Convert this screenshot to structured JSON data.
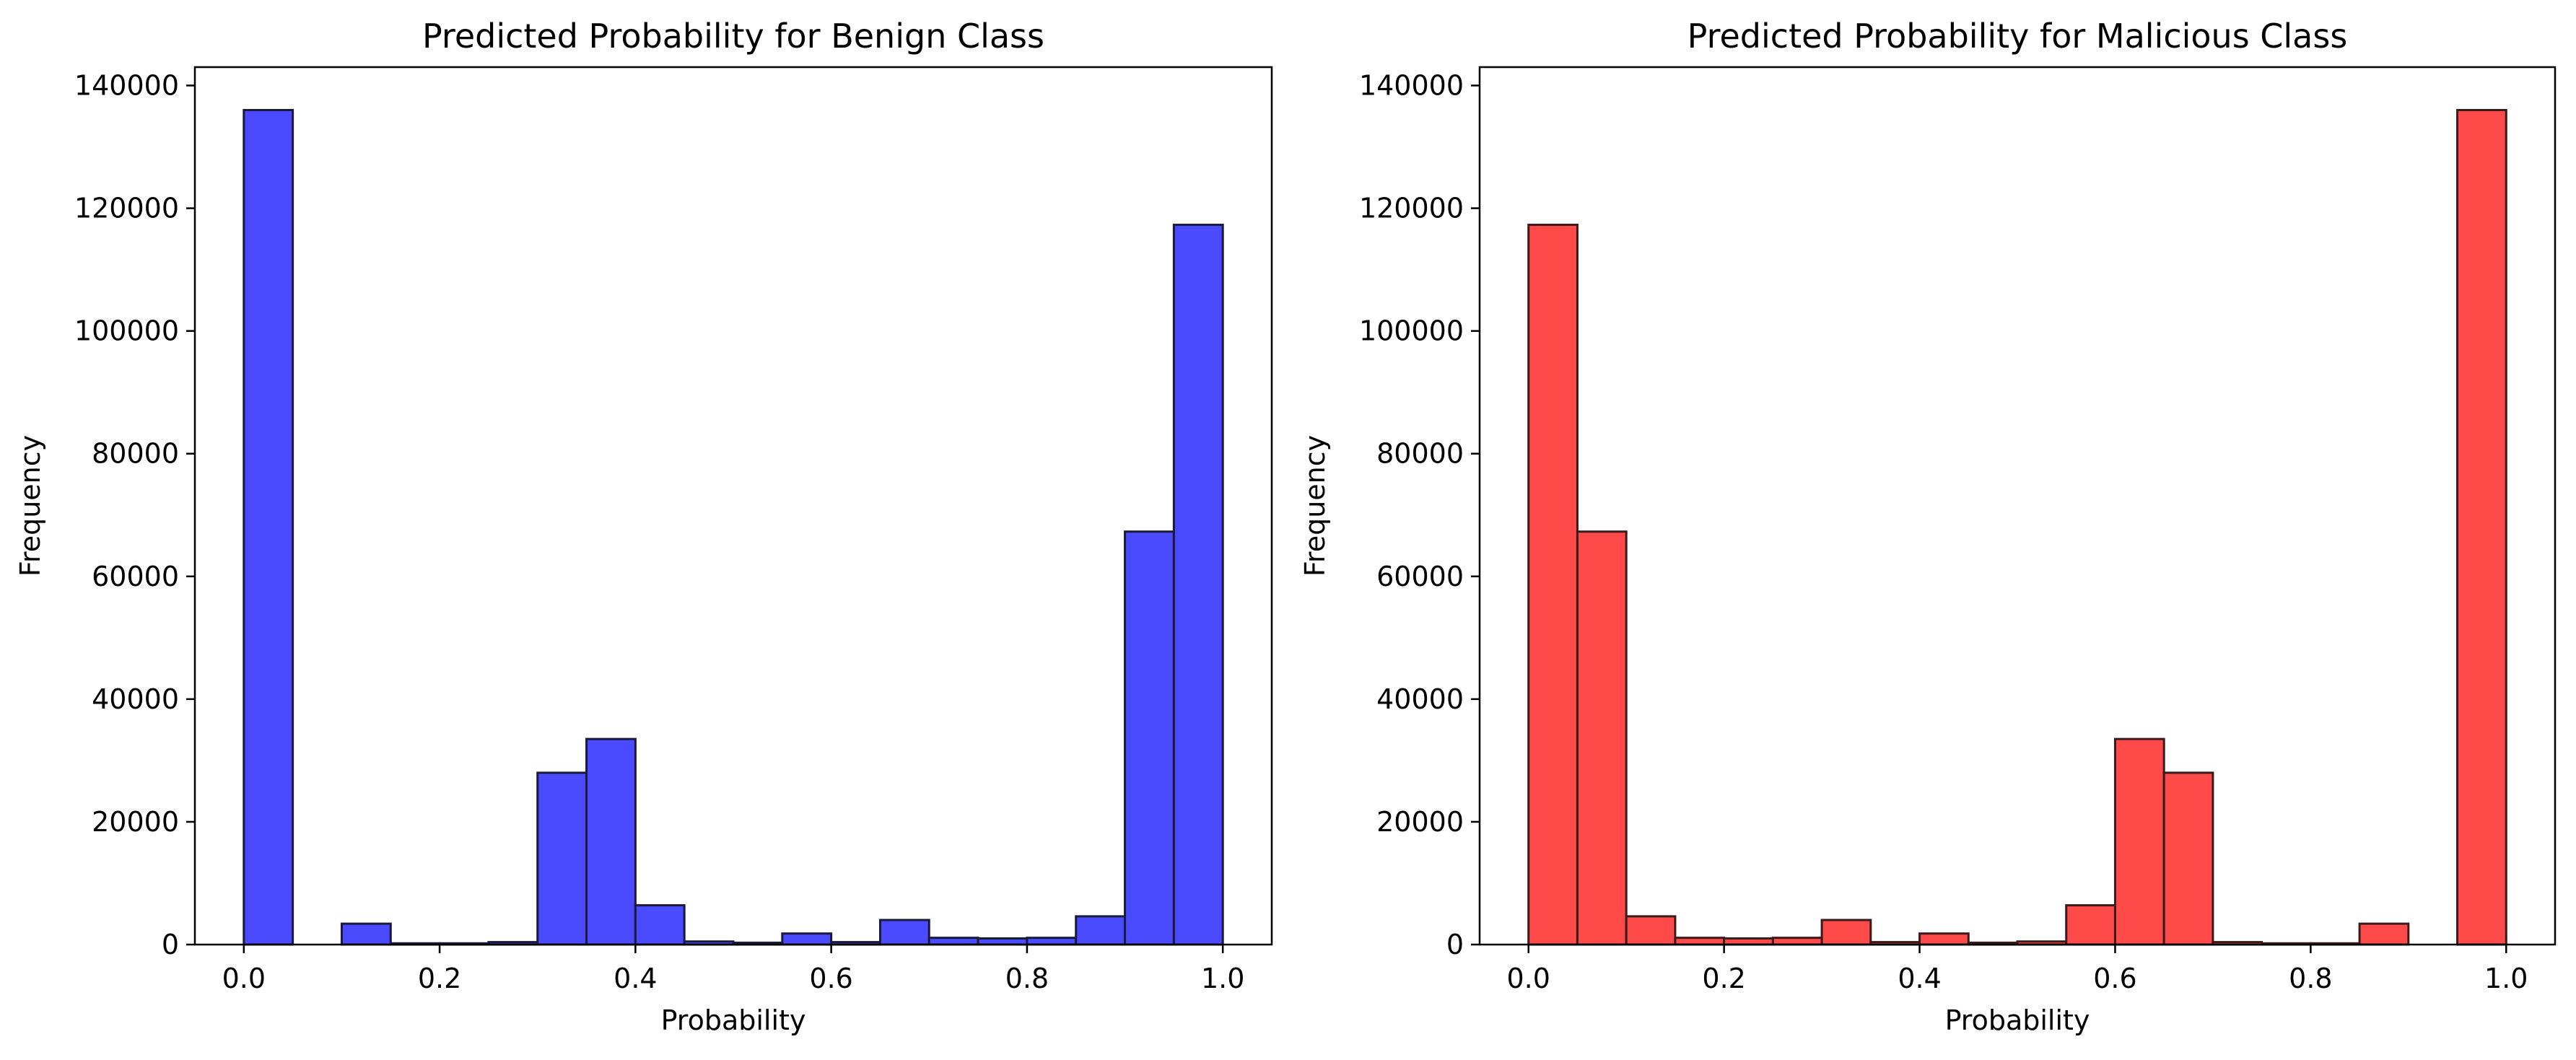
{
  "chart_data": [
    {
      "type": "bar",
      "title": "Predicted Probability for Benign Class",
      "xlabel": "Probability",
      "ylabel": "Frequency",
      "xlim": [
        -0.05,
        1.05
      ],
      "ylim": [
        0,
        143000
      ],
      "bin_edges": [
        0.0,
        0.05,
        0.1,
        0.15,
        0.2,
        0.25,
        0.3,
        0.35,
        0.4,
        0.45,
        0.5,
        0.55,
        0.6,
        0.65,
        0.7,
        0.75,
        0.8,
        0.85,
        0.9,
        0.95,
        1.0
      ],
      "values": [
        136000,
        0,
        3400,
        200,
        200,
        400,
        28000,
        33500,
        6400,
        500,
        300,
        1800,
        400,
        4000,
        1100,
        1000,
        1100,
        4600,
        67300,
        117300
      ],
      "xticks": [
        "0.0",
        "0.2",
        "0.4",
        "0.6",
        "0.8",
        "1.0"
      ],
      "yticks": [
        "0",
        "20000",
        "40000",
        "60000",
        "80000",
        "100000",
        "120000",
        "140000"
      ],
      "bar_color": "#4a4aff",
      "edge_color": "#1a1a3a",
      "grid": false
    },
    {
      "type": "bar",
      "title": "Predicted Probability for Malicious Class",
      "xlabel": "Probability",
      "ylabel": "Frequency",
      "xlim": [
        -0.05,
        1.05
      ],
      "ylim": [
        0,
        143000
      ],
      "bin_edges": [
        0.0,
        0.05,
        0.1,
        0.15,
        0.2,
        0.25,
        0.3,
        0.35,
        0.4,
        0.45,
        0.5,
        0.55,
        0.6,
        0.65,
        0.7,
        0.75,
        0.8,
        0.85,
        0.9,
        0.95,
        1.0
      ],
      "values": [
        117300,
        67300,
        4600,
        1100,
        1000,
        1100,
        4000,
        400,
        1800,
        300,
        500,
        6400,
        33500,
        28000,
        400,
        200,
        200,
        3400,
        0,
        136000
      ],
      "xticks": [
        "0.0",
        "0.2",
        "0.4",
        "0.6",
        "0.8",
        "1.0"
      ],
      "yticks": [
        "0",
        "20000",
        "40000",
        "60000",
        "80000",
        "100000",
        "120000",
        "140000"
      ],
      "bar_color": "#ff4a4a",
      "edge_color": "#3a1a1a",
      "grid": false
    }
  ]
}
